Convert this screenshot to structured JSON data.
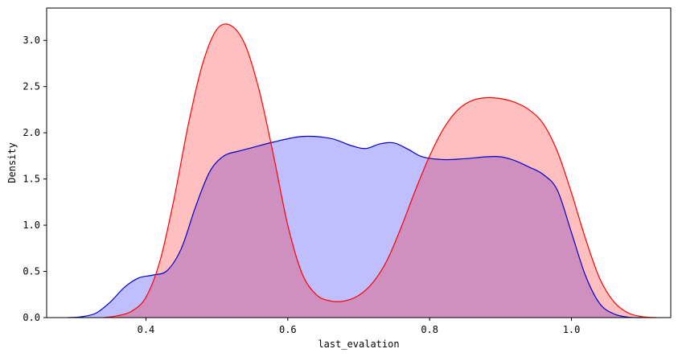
{
  "chart_data": {
    "type": "area",
    "xlabel": "last_evalation",
    "ylabel": "Density",
    "xlim": [
      0.26,
      1.14
    ],
    "ylim": [
      0,
      3.35
    ],
    "xticks": [
      0.4,
      0.6,
      0.8,
      1.0
    ],
    "xtick_labels": [
      "0.4",
      "0.6",
      "0.8",
      "1.0"
    ],
    "yticks": [
      0.0,
      0.5,
      1.0,
      1.5,
      2.0,
      2.5,
      3.0
    ],
    "ytick_labels": [
      "0.0",
      "0.5",
      "1.0",
      "1.5",
      "2.0",
      "2.5",
      "3.0"
    ],
    "grid": false,
    "series": [
      {
        "stroke": "#0000cc",
        "fill": "#0000ff",
        "fill_opacity": 0.25,
        "points": [
          [
            0.29,
            0.0
          ],
          [
            0.31,
            0.01
          ],
          [
            0.33,
            0.05
          ],
          [
            0.35,
            0.17
          ],
          [
            0.37,
            0.33
          ],
          [
            0.39,
            0.43
          ],
          [
            0.41,
            0.46
          ],
          [
            0.43,
            0.51
          ],
          [
            0.45,
            0.75
          ],
          [
            0.47,
            1.2
          ],
          [
            0.49,
            1.58
          ],
          [
            0.51,
            1.75
          ],
          [
            0.53,
            1.8
          ],
          [
            0.55,
            1.84
          ],
          [
            0.58,
            1.9
          ],
          [
            0.62,
            1.96
          ],
          [
            0.66,
            1.94
          ],
          [
            0.69,
            1.86
          ],
          [
            0.71,
            1.83
          ],
          [
            0.73,
            1.88
          ],
          [
            0.75,
            1.89
          ],
          [
            0.77,
            1.82
          ],
          [
            0.79,
            1.74
          ],
          [
            0.82,
            1.71
          ],
          [
            0.85,
            1.72
          ],
          [
            0.88,
            1.74
          ],
          [
            0.9,
            1.74
          ],
          [
            0.92,
            1.7
          ],
          [
            0.94,
            1.63
          ],
          [
            0.96,
            1.55
          ],
          [
            0.98,
            1.38
          ],
          [
            1.0,
            0.92
          ],
          [
            1.02,
            0.45
          ],
          [
            1.04,
            0.15
          ],
          [
            1.06,
            0.04
          ],
          [
            1.08,
            0.005
          ],
          [
            1.1,
            0.0
          ]
        ]
      },
      {
        "stroke": "#ff0000",
        "fill": "#ff0000",
        "fill_opacity": 0.25,
        "points": [
          [
            0.34,
            0.0
          ],
          [
            0.36,
            0.02
          ],
          [
            0.38,
            0.07
          ],
          [
            0.4,
            0.22
          ],
          [
            0.42,
            0.62
          ],
          [
            0.44,
            1.3
          ],
          [
            0.46,
            2.1
          ],
          [
            0.48,
            2.75
          ],
          [
            0.5,
            3.12
          ],
          [
            0.52,
            3.16
          ],
          [
            0.54,
            2.95
          ],
          [
            0.56,
            2.45
          ],
          [
            0.58,
            1.75
          ],
          [
            0.6,
            1.0
          ],
          [
            0.62,
            0.48
          ],
          [
            0.64,
            0.25
          ],
          [
            0.66,
            0.18
          ],
          [
            0.68,
            0.18
          ],
          [
            0.7,
            0.24
          ],
          [
            0.72,
            0.38
          ],
          [
            0.74,
            0.62
          ],
          [
            0.76,
            0.98
          ],
          [
            0.78,
            1.38
          ],
          [
            0.8,
            1.75
          ],
          [
            0.82,
            2.05
          ],
          [
            0.84,
            2.25
          ],
          [
            0.86,
            2.35
          ],
          [
            0.88,
            2.38
          ],
          [
            0.9,
            2.37
          ],
          [
            0.92,
            2.33
          ],
          [
            0.94,
            2.25
          ],
          [
            0.96,
            2.1
          ],
          [
            0.98,
            1.8
          ],
          [
            1.0,
            1.35
          ],
          [
            1.02,
            0.85
          ],
          [
            1.04,
            0.42
          ],
          [
            1.06,
            0.17
          ],
          [
            1.08,
            0.05
          ],
          [
            1.1,
            0.01
          ],
          [
            1.12,
            0.0
          ]
        ]
      }
    ]
  }
}
